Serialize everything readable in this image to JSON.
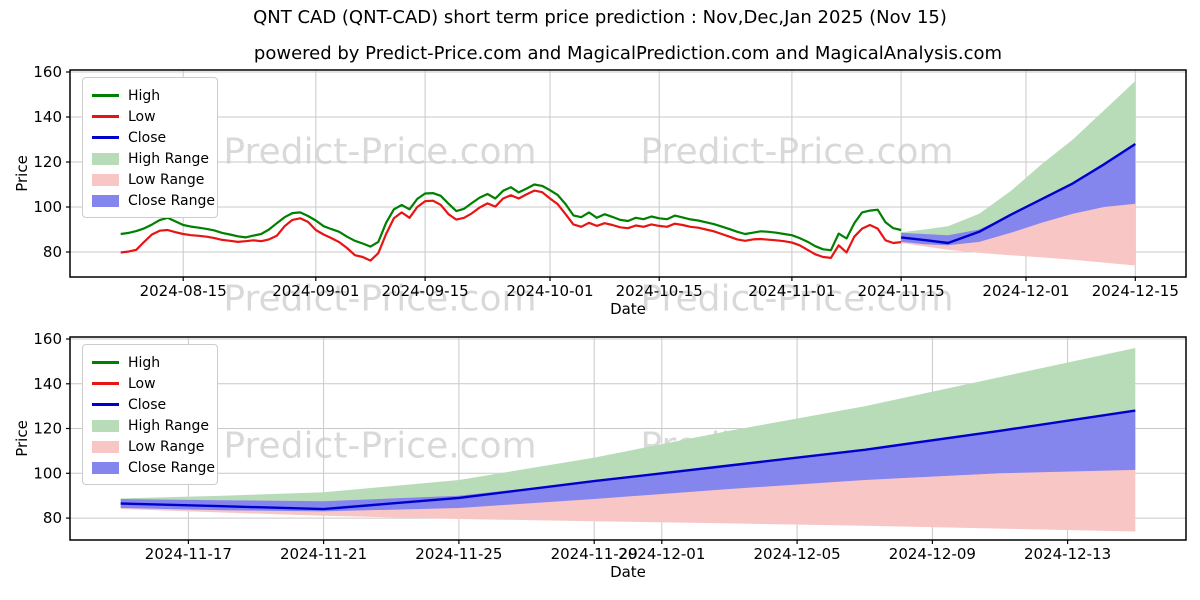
{
  "watermark_text": "Predict-Price.com",
  "colors": {
    "high_line": "#008000",
    "low_line": "#e81414",
    "close_line": "#0000cd",
    "high_range_fill": "#b8dcb8",
    "low_range_fill": "#f9c6c6",
    "close_range_fill": "#8585ee",
    "grid": "#c9c9c9",
    "spine": "#000000"
  },
  "legend_items": [
    {
      "label": "High",
      "type": "line",
      "color_key": "high_line"
    },
    {
      "label": "Low",
      "type": "line",
      "color_key": "low_line"
    },
    {
      "label": "Close",
      "type": "line",
      "color_key": "close_line"
    },
    {
      "label": "High Range",
      "type": "patch",
      "color_key": "high_range_fill"
    },
    {
      "label": "Low Range",
      "type": "patch",
      "color_key": "low_range_fill"
    },
    {
      "label": "Close Range",
      "type": "patch",
      "color_key": "close_range_fill"
    }
  ],
  "chart_data": {
    "type": "line",
    "title": "QNT CAD (QNT-CAD) short term price prediction : Nov,Dec,Jan 2025 (Nov 15)",
    "subtitle": "powered by Predict-Price.com and MagicalPrediction.com and MagicalAnalysis.com",
    "xlabel": "Date",
    "ylabel": "Price",
    "legend_position": "upper-left",
    "grid": true,
    "historical": {
      "start_date": "2024-08-07",
      "interval_days": 1,
      "high": [
        88.0,
        88.5,
        89.3,
        90.5,
        92.2,
        94.2,
        95.2,
        93.6,
        92.0,
        91.3,
        90.8,
        90.3,
        89.6,
        88.5,
        87.8,
        87.0,
        86.5,
        87.3,
        88.0,
        90.0,
        92.8,
        95.5,
        97.3,
        97.6,
        96.0,
        94.0,
        91.5,
        90.2,
        89.0,
        86.8,
        85.0,
        83.8,
        82.4,
        84.5,
        93.0,
        99.0,
        100.9,
        99.0,
        103.6,
        106.0,
        106.2,
        105.0,
        101.5,
        98.2,
        99.2,
        101.8,
        104.2,
        105.8,
        103.8,
        107.2,
        108.8,
        106.5,
        108.2,
        110.0,
        109.4,
        107.5,
        105.3,
        101.3,
        96.3,
        95.5,
        97.6,
        95.2,
        96.8,
        95.6,
        94.3,
        93.8,
        95.2,
        94.6,
        95.8,
        95.0,
        94.6,
        96.2,
        95.4,
        94.5,
        94.0,
        93.2,
        92.4,
        91.3,
        90.2,
        89.0,
        88.0,
        88.6,
        89.2,
        89.0,
        88.6,
        88.0,
        87.5,
        86.2,
        84.6,
        82.6,
        81.2,
        80.8,
        88.2,
        86.0,
        92.8,
        97.6,
        98.4,
        98.8,
        93.2,
        90.6,
        89.8
      ],
      "low": [
        79.8,
        80.2,
        81.0,
        84.5,
        87.8,
        89.5,
        89.8,
        88.8,
        88.0,
        87.5,
        87.2,
        86.8,
        86.2,
        85.4,
        85.0,
        84.5,
        84.8,
        85.2,
        84.8,
        85.6,
        87.2,
        91.5,
        94.3,
        95.0,
        93.4,
        89.8,
        87.8,
        86.2,
        84.4,
        81.8,
        78.6,
        77.8,
        76.2,
        79.5,
        88.0,
        95.0,
        97.6,
        95.2,
        100.0,
        102.6,
        102.8,
        101.0,
        96.8,
        94.4,
        95.2,
        97.2,
        99.8,
        101.6,
        100.2,
        103.8,
        105.2,
        103.8,
        105.6,
        107.3,
        106.6,
        103.8,
        101.2,
        96.8,
        92.3,
        91.2,
        93.0,
        91.6,
        92.8,
        92.0,
        91.0,
        90.6,
        91.8,
        91.2,
        92.3,
        91.6,
        91.2,
        92.6,
        92.0,
        91.2,
        90.8,
        90.0,
        89.2,
        88.0,
        86.8,
        85.6,
        85.0,
        85.6,
        85.8,
        85.5,
        85.2,
        84.8,
        84.2,
        83.0,
        81.0,
        79.0,
        77.8,
        77.4,
        83.0,
        79.8,
        86.8,
        90.4,
        92.0,
        90.4,
        85.2,
        84.0,
        84.4
      ]
    },
    "prediction": {
      "dates": [
        "2024-11-15",
        "2024-11-18",
        "2024-11-21",
        "2024-11-25",
        "2024-11-29",
        "2024-12-03",
        "2024-12-07",
        "2024-12-11",
        "2024-12-15"
      ],
      "close": [
        86.5,
        85.3,
        84.0,
        89.0,
        96.5,
        103.5,
        110.5,
        119.0,
        128.0
      ],
      "close_range_max": [
        88.5,
        88.0,
        87.5,
        90.0,
        96.5,
        103.5,
        110.5,
        119.0,
        128.0
      ],
      "close_range_min": [
        84.5,
        83.5,
        83.0,
        84.5,
        88.5,
        93.0,
        97.0,
        100.0,
        101.5
      ],
      "high_range_max": [
        88.8,
        90.0,
        91.5,
        97.0,
        107.0,
        119.0,
        130.0,
        143.0,
        156.0
      ],
      "low_range_min": [
        84.0,
        82.5,
        81.0,
        79.6,
        78.6,
        77.6,
        76.6,
        75.3,
        74.0
      ]
    },
    "top_chart": {
      "x_domain": [
        "2024-07-31T12:00",
        "2024-12-21T12:00"
      ],
      "y_domain": [
        68.9,
        160.9
      ],
      "yticks": [
        80,
        100,
        120,
        140,
        160
      ],
      "xticks": [
        "2024-08-15",
        "2024-09-01",
        "2024-09-15",
        "2024-10-01",
        "2024-10-15",
        "2024-11-01",
        "2024-11-15",
        "2024-12-01",
        "2024-12-15"
      ]
    },
    "bottom_chart": {
      "x_domain": [
        "2024-11-13T12:00",
        "2024-12-16T12:00"
      ],
      "y_domain": [
        70.2,
        160.9
      ],
      "yticks": [
        80,
        100,
        120,
        140,
        160
      ],
      "xticks": [
        "2024-11-17",
        "2024-11-21",
        "2024-11-25",
        "2024-11-29",
        "2024-12-01",
        "2024-12-05",
        "2024-12-09",
        "2024-12-13"
      ]
    }
  }
}
